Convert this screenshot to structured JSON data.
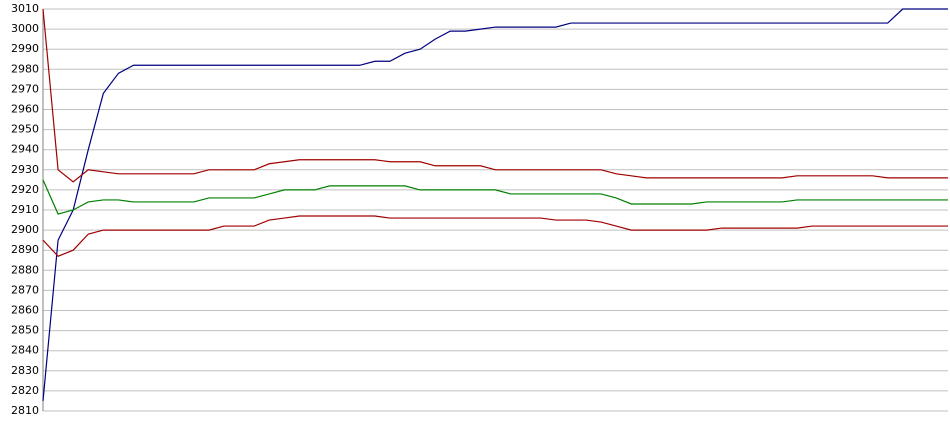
{
  "chart_data": {
    "type": "line",
    "categories": [
      null,
      null,
      null,
      null,
      null,
      null,
      null,
      null,
      null,
      null,
      null,
      null,
      null,
      null,
      null,
      null,
      null,
      null,
      null,
      null,
      null,
      null,
      null,
      null,
      null,
      null,
      null,
      null,
      null,
      null,
      null,
      null,
      null,
      null,
      null,
      null,
      null,
      null,
      null,
      null,
      null,
      null,
      null,
      null,
      null,
      null,
      null,
      null,
      null,
      null,
      null,
      null,
      null,
      null,
      null,
      null,
      null,
      null,
      null,
      null,
      null
    ],
    "series": [
      {
        "color": "#000080",
        "values": [
          2815,
          2895,
          2910,
          2940,
          2968,
          2978,
          2982,
          2982,
          2982,
          2982,
          2982,
          2982,
          2982,
          2982,
          2982,
          2982,
          2982,
          2982,
          2982,
          2982,
          2982,
          2982,
          2984,
          2984,
          2988,
          2990,
          2995,
          2999,
          2999,
          3000,
          3001,
          3001,
          3001,
          3001,
          3001,
          3003,
          3003,
          3003,
          3003,
          3003,
          3003,
          3003,
          3003,
          3003,
          3003,
          3003,
          3003,
          3003,
          3003,
          3003,
          3003,
          3003,
          3003,
          3003,
          3003,
          3003,
          3003,
          3010,
          3010,
          3010,
          3010
        ]
      },
      {
        "color": "#a00000",
        "values": [
          3010,
          2930,
          2924,
          2930,
          2929,
          2928,
          2928,
          2928,
          2928,
          2928,
          2928,
          2930,
          2930,
          2930,
          2930,
          2933,
          2934,
          2935,
          2935,
          2935,
          2935,
          2935,
          2935,
          2934,
          2934,
          2934,
          2932,
          2932,
          2932,
          2932,
          2930,
          2930,
          2930,
          2930,
          2930,
          2930,
          2930,
          2930,
          2928,
          2927,
          2926,
          2926,
          2926,
          2926,
          2926,
          2926,
          2926,
          2926,
          2926,
          2926,
          2927,
          2927,
          2927,
          2927,
          2927,
          2927,
          2926,
          2926,
          2926,
          2926,
          2926
        ]
      },
      {
        "color": "#008000",
        "values": [
          2925,
          2908,
          2910,
          2914,
          2915,
          2915,
          2914,
          2914,
          2914,
          2914,
          2914,
          2916,
          2916,
          2916,
          2916,
          2918,
          2920,
          2920,
          2920,
          2922,
          2922,
          2922,
          2922,
          2922,
          2922,
          2920,
          2920,
          2920,
          2920,
          2920,
          2920,
          2918,
          2918,
          2918,
          2918,
          2918,
          2918,
          2918,
          2916,
          2913,
          2913,
          2913,
          2913,
          2913,
          2914,
          2914,
          2914,
          2914,
          2914,
          2914,
          2915,
          2915,
          2915,
          2915,
          2915,
          2915,
          2915,
          2915,
          2915,
          2915,
          2915
        ]
      },
      {
        "color": "#a00000",
        "values": [
          2895,
          2887,
          2890,
          2898,
          2900,
          2900,
          2900,
          2900,
          2900,
          2900,
          2900,
          2900,
          2902,
          2902,
          2902,
          2905,
          2906,
          2907,
          2907,
          2907,
          2907,
          2907,
          2907,
          2906,
          2906,
          2906,
          2906,
          2906,
          2906,
          2906,
          2906,
          2906,
          2906,
          2906,
          2905,
          2905,
          2905,
          2904,
          2902,
          2900,
          2900,
          2900,
          2900,
          2900,
          2900,
          2901,
          2901,
          2901,
          2901,
          2901,
          2901,
          2902,
          2902,
          2902,
          2902,
          2902,
          2902,
          2902,
          2902,
          2902,
          2902
        ]
      }
    ],
    "ylim": [
      2810,
      3010
    ],
    "yticks": [
      2810,
      2820,
      2830,
      2840,
      2850,
      2860,
      2870,
      2880,
      2890,
      2900,
      2910,
      2920,
      2930,
      2940,
      2950,
      2960,
      2970,
      2980,
      2990,
      3000,
      3010
    ],
    "grid": true
  }
}
